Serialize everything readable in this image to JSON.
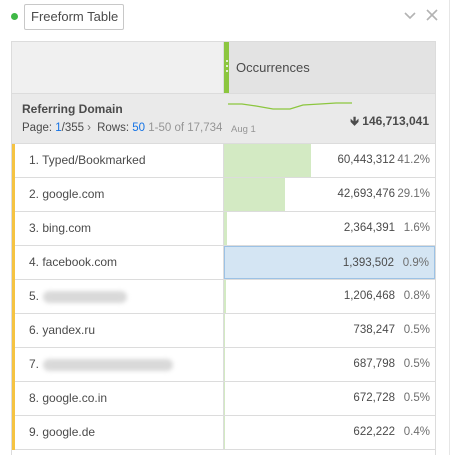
{
  "panel": {
    "title": "Freeform Table"
  },
  "table": {
    "metric_header": "Occurrences",
    "dimension": {
      "title": "Referring Domain",
      "page_label": "Page:",
      "page_current": "1",
      "page_total": "/355",
      "rows_label": "Rows:",
      "rows_value": "50",
      "range": "1-50 of 17,734",
      "spark_date": "Aug 1",
      "total": "146,713,041"
    },
    "rows": [
      {
        "rank_name": "1. Typed/Bookmarked",
        "value": "60,443,312",
        "pct": "41.2%",
        "share": 0.412
      },
      {
        "rank_name": "2. google.com",
        "value": "42,693,476",
        "pct": "29.1%",
        "share": 0.291
      },
      {
        "rank_name": "3. bing.com",
        "value": "2,364,391",
        "pct": "1.6%",
        "share": 0.016
      },
      {
        "rank_name": "4. facebook.com",
        "value": "1,393,502",
        "pct": "0.9%",
        "share": 0.009,
        "selected": true
      },
      {
        "rank_name": "5.",
        "value": "1,206,468",
        "pct": "0.8%",
        "share": 0.008,
        "redacted": true
      },
      {
        "rank_name": "6. yandex.ru",
        "value": "738,247",
        "pct": "0.5%",
        "share": 0.005
      },
      {
        "rank_name": "7.",
        "value": "687,798",
        "pct": "0.5%",
        "share": 0.005,
        "redacted": true
      },
      {
        "rank_name": "8. google.co.in",
        "value": "672,728",
        "pct": "0.5%",
        "share": 0.005
      },
      {
        "rank_name": "9. google.de",
        "value": "622,222",
        "pct": "0.4%",
        "share": 0.004
      }
    ]
  },
  "colors": {
    "status": "#3fb846",
    "metric_handle": "#8cc63f",
    "bar_fill": "#d3eac3",
    "row_accent": "#f5c342",
    "selected_fill": "#d4e5f3",
    "link": "#1473e6"
  },
  "icons": {
    "collapse": "chevron-down-icon",
    "close": "close-icon",
    "sort": "arrow-down-icon"
  }
}
